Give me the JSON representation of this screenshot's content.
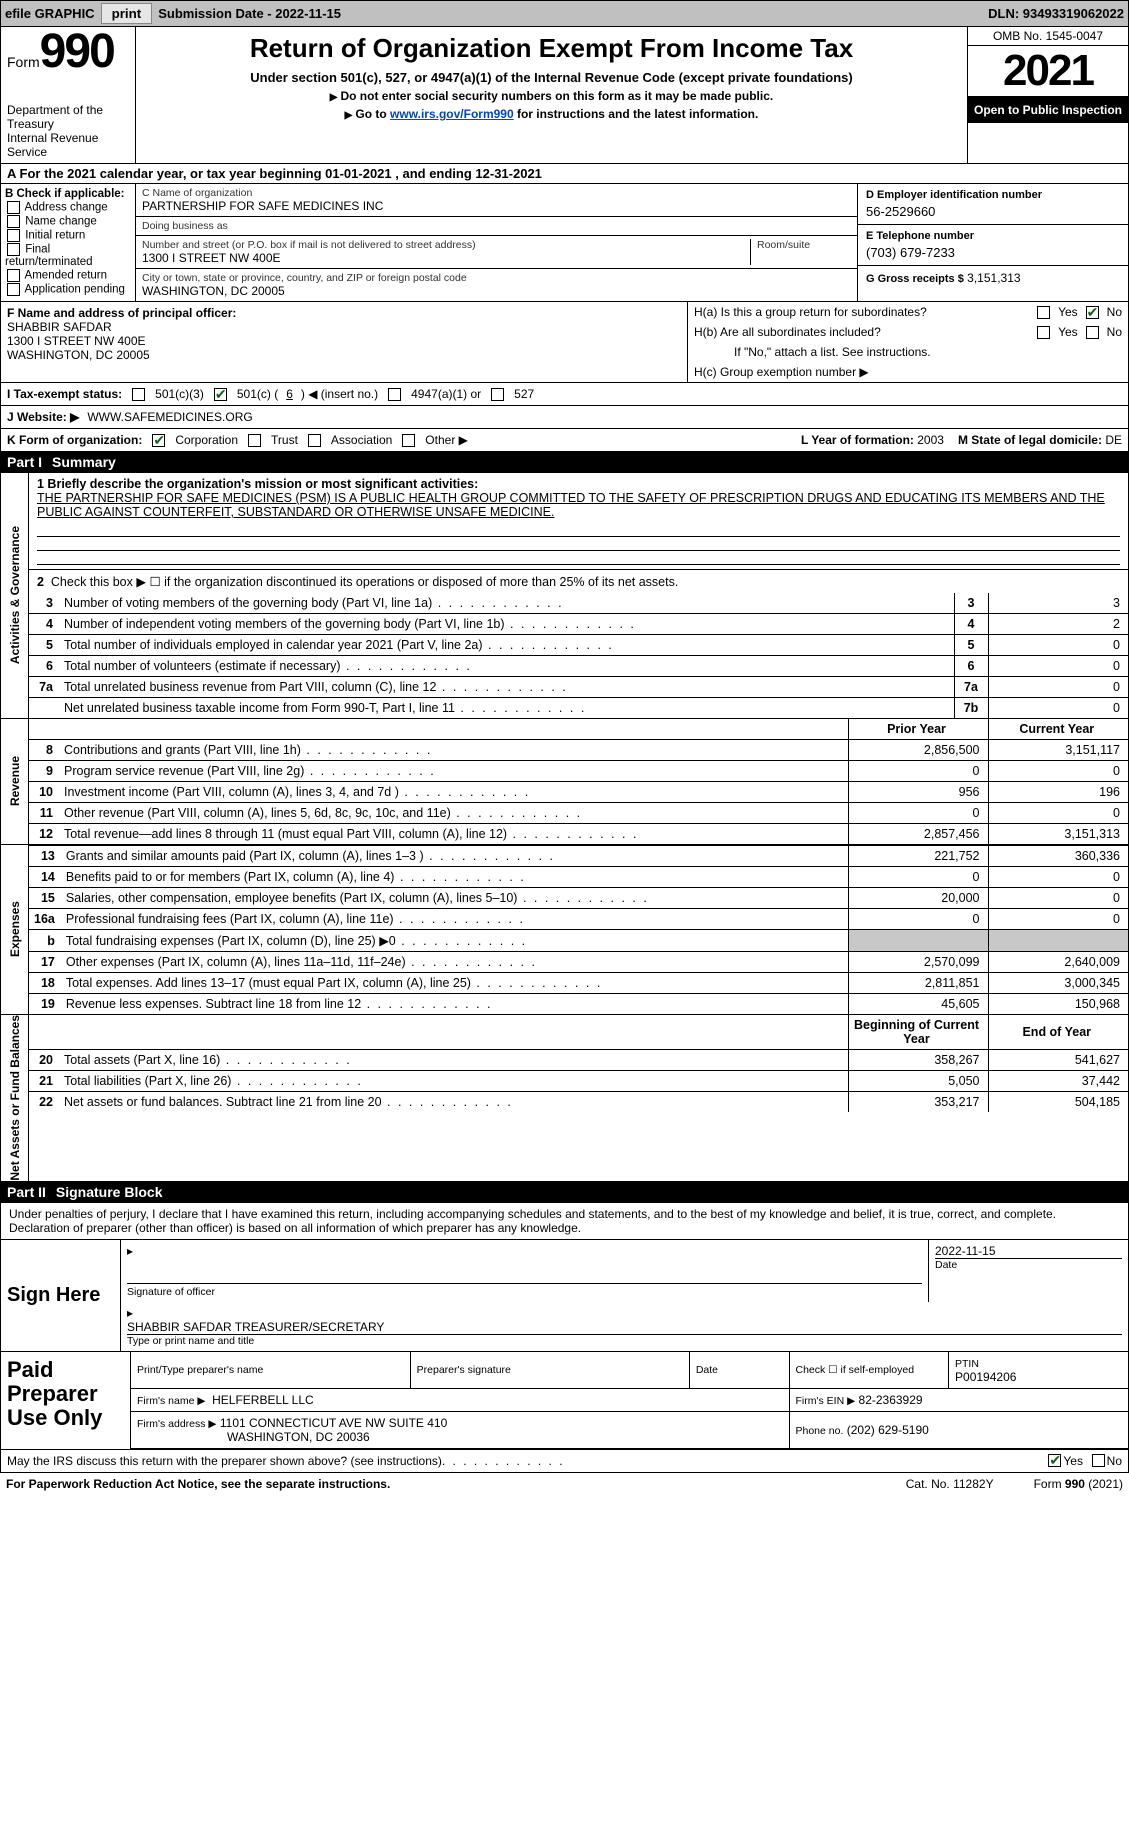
{
  "colors": {
    "topbar_bg": "#c0c0c0",
    "btn_bg": "#e6e6e6",
    "link": "#0645ad",
    "part_bg": "#000000",
    "part_fg": "#ffffff",
    "shade": "#c8c8c8"
  },
  "topbar": {
    "efile_label": "efile GRAPHIC",
    "print_btn": "print",
    "submission_label": "Submission Date - 2022-11-15",
    "dln_label": "DLN: 93493319062022"
  },
  "header": {
    "form_word": "Form",
    "form_num": "990",
    "dept": "Department of the Treasury",
    "irs": "Internal Revenue Service",
    "title": "Return of Organization Exempt From Income Tax",
    "subtitle": "Under section 501(c), 527, or 4947(a)(1) of the Internal Revenue Code (except private foundations)",
    "hint1": "Do not enter social security numbers on this form as it may be made public.",
    "hint2_pre": "Go to ",
    "hint2_link": "www.irs.gov/Form990",
    "hint2_post": " for instructions and the latest information.",
    "omb": "OMB No. 1545-0047",
    "year": "2021",
    "otp": "Open to Public Inspection"
  },
  "period": {
    "line": "A For the 2021 calendar year, or tax year beginning 01-01-2021     , and ending 12-31-2021"
  },
  "boxB": {
    "label": "B Check if applicable:",
    "items": [
      "Address change",
      "Name change",
      "Initial return",
      "Final return/terminated",
      "Amended return",
      "Application pending"
    ]
  },
  "boxC": {
    "name_label": "C Name of organization",
    "name": "PARTNERSHIP FOR SAFE MEDICINES INC",
    "dba_label": "Doing business as",
    "dba": "",
    "addr_label": "Number and street (or P.O. box if mail is not delivered to street address)",
    "room_label": "Room/suite",
    "addr": "1300 I STREET NW 400E",
    "city_label": "City or town, state or province, country, and ZIP or foreign postal code",
    "city": "WASHINGTON, DC  20005"
  },
  "boxD": {
    "label": "D Employer identification number",
    "ein": "56-2529660",
    "phone_label": "E Telephone number",
    "phone": "(703) 679-7233",
    "gross_label": "G Gross receipts $",
    "gross": "3,151,313"
  },
  "boxF": {
    "label": "F Name and address of principal officer:",
    "name": "SHABBIR SAFDAR",
    "addr1": "1300 I STREET NW 400E",
    "addr2": "WASHINGTON, DC  20005"
  },
  "boxH": {
    "a_label": "H(a) Is this a group return for subordinates?",
    "yes": "Yes",
    "no": "No",
    "b_label": "H(b) Are all subordinates included?",
    "b_note": "If \"No,\" attach a list. See instructions.",
    "c_label": "H(c) Group exemption number ▶"
  },
  "taxexempt": {
    "label": "I   Tax-exempt status:",
    "c3": "501(c)(3)",
    "c_other_pre": "501(c) (",
    "c_other_num": "6",
    "c_other_post": ") ◀ (insert no.)",
    "a1": "4947(a)(1) or",
    "s527": "527"
  },
  "website": {
    "label": "J   Website: ▶",
    "url": "WWW.SAFEMEDICINES.ORG"
  },
  "korg": {
    "label": "K Form of organization:",
    "opts": [
      "Corporation",
      "Trust",
      "Association",
      "Other ▶"
    ],
    "year_label": "L Year of formation:",
    "year": "2003",
    "state_label": "M State of legal domicile:",
    "state": "DE"
  },
  "part1": {
    "title": "Part I",
    "name": "Summary",
    "q1_label": "1   Briefly describe the organization's mission or most significant activities:",
    "q1_text": "THE PARTNERSHIP FOR SAFE MEDICINES (PSM) IS A PUBLIC HEALTH GROUP COMMITTED TO THE SAFETY OF PRESCRIPTION DRUGS AND EDUCATING ITS MEMBERS AND THE PUBLIC AGAINST COUNTERFEIT, SUBSTANDARD OR OTHERWISE UNSAFE MEDICINE.",
    "q2": "Check this box ▶ ☐ if the organization discontinued its operations or disposed of more than 25% of its net assets.",
    "rows_a": [
      {
        "n": "3",
        "desc": "Number of voting members of the governing body (Part VI, line 1a)",
        "box": "3",
        "val": "3"
      },
      {
        "n": "4",
        "desc": "Number of independent voting members of the governing body (Part VI, line 1b)",
        "box": "4",
        "val": "2"
      },
      {
        "n": "5",
        "desc": "Total number of individuals employed in calendar year 2021 (Part V, line 2a)",
        "box": "5",
        "val": "0"
      },
      {
        "n": "6",
        "desc": "Total number of volunteers (estimate if necessary)",
        "box": "6",
        "val": "0"
      },
      {
        "n": "7a",
        "desc": "Total unrelated business revenue from Part VIII, column (C), line 12",
        "box": "7a",
        "val": "0"
      },
      {
        "n": "",
        "desc": "Net unrelated business taxable income from Form 990-T, Part I, line 11",
        "box": "7b",
        "val": "0"
      }
    ],
    "py_label": "Prior Year",
    "cy_label": "Current Year",
    "rows_rev": [
      {
        "n": "8",
        "desc": "Contributions and grants (Part VIII, line 1h)",
        "py": "2,856,500",
        "cy": "3,151,117"
      },
      {
        "n": "9",
        "desc": "Program service revenue (Part VIII, line 2g)",
        "py": "0",
        "cy": "0"
      },
      {
        "n": "10",
        "desc": "Investment income (Part VIII, column (A), lines 3, 4, and 7d )",
        "py": "956",
        "cy": "196"
      },
      {
        "n": "11",
        "desc": "Other revenue (Part VIII, column (A), lines 5, 6d, 8c, 9c, 10c, and 11e)",
        "py": "0",
        "cy": "0"
      },
      {
        "n": "12",
        "desc": "Total revenue—add lines 8 through 11 (must equal Part VIII, column (A), line 12)",
        "py": "2,857,456",
        "cy": "3,151,313"
      }
    ],
    "rows_exp": [
      {
        "n": "13",
        "desc": "Grants and similar amounts paid (Part IX, column (A), lines 1–3 )",
        "py": "221,752",
        "cy": "360,336"
      },
      {
        "n": "14",
        "desc": "Benefits paid to or for members (Part IX, column (A), line 4)",
        "py": "0",
        "cy": "0"
      },
      {
        "n": "15",
        "desc": "Salaries, other compensation, employee benefits (Part IX, column (A), lines 5–10)",
        "py": "20,000",
        "cy": "0"
      },
      {
        "n": "16a",
        "desc": "Professional fundraising fees (Part IX, column (A), line 11e)",
        "py": "0",
        "cy": "0"
      },
      {
        "n": "b",
        "desc": "Total fundraising expenses (Part IX, column (D), line 25) ▶0",
        "py": "",
        "cy": "",
        "shade": true
      },
      {
        "n": "17",
        "desc": "Other expenses (Part IX, column (A), lines 11a–11d, 11f–24e)",
        "py": "2,570,099",
        "cy": "2,640,009"
      },
      {
        "n": "18",
        "desc": "Total expenses. Add lines 13–17 (must equal Part IX, column (A), line 25)",
        "py": "2,811,851",
        "cy": "3,000,345"
      },
      {
        "n": "19",
        "desc": "Revenue less expenses. Subtract line 18 from line 12",
        "py": "45,605",
        "cy": "150,968"
      }
    ],
    "bcy_label": "Beginning of Current Year",
    "eoy_label": "End of Year",
    "rows_net": [
      {
        "n": "20",
        "desc": "Total assets (Part X, line 16)",
        "py": "358,267",
        "cy": "541,627"
      },
      {
        "n": "21",
        "desc": "Total liabilities (Part X, line 26)",
        "py": "5,050",
        "cy": "37,442"
      },
      {
        "n": "22",
        "desc": "Net assets or fund balances. Subtract line 21 from line 20",
        "py": "353,217",
        "cy": "504,185"
      }
    ],
    "vtab_act": "Activities & Governance",
    "vtab_rev": "Revenue",
    "vtab_exp": "Expenses",
    "vtab_net": "Net Assets or Fund Balances"
  },
  "part2": {
    "title": "Part II",
    "name": "Signature Block",
    "intro": "Under penalties of perjury, I declare that I have examined this return, including accompanying schedules and statements, and to the best of my knowledge and belief, it is true, correct, and complete. Declaration of preparer (other than officer) is based on all information of which preparer has any knowledge.",
    "sign_here": "Sign Here",
    "sig_officer": "Signature of officer",
    "sig_date": "Date",
    "sig_date_val": "2022-11-15",
    "officer_name": "SHABBIR SAFDAR  TREASURER/SECRETARY",
    "type_name": "Type or print name and title",
    "paid_label": "Paid Preparer Use Only",
    "prep_name_label": "Print/Type preparer's name",
    "prep_sig_label": "Preparer's signature",
    "date_label": "Date",
    "self_emp": "Check ☐ if self-employed",
    "ptin_label": "PTIN",
    "ptin": "P00194206",
    "firm_name_label": "Firm's name   ▶",
    "firm_name": "HELFERBELL LLC",
    "firm_ein_label": "Firm's EIN ▶",
    "firm_ein": "82-2363929",
    "firm_addr_label": "Firm's address ▶",
    "firm_addr": "1101 CONNECTICUT AVE NW SUITE 410",
    "firm_city": "WASHINGTON, DC  20036",
    "firm_phone_label": "Phone no.",
    "firm_phone": "(202) 629-5190",
    "discuss": "May the IRS discuss this return with the preparer shown above? (see instructions)",
    "yes": "Yes",
    "no": "No"
  },
  "footer": {
    "pra": "For Paperwork Reduction Act Notice, see the separate instructions.",
    "cat": "Cat. No. 11282Y",
    "formref": "Form 990 (2021)"
  }
}
